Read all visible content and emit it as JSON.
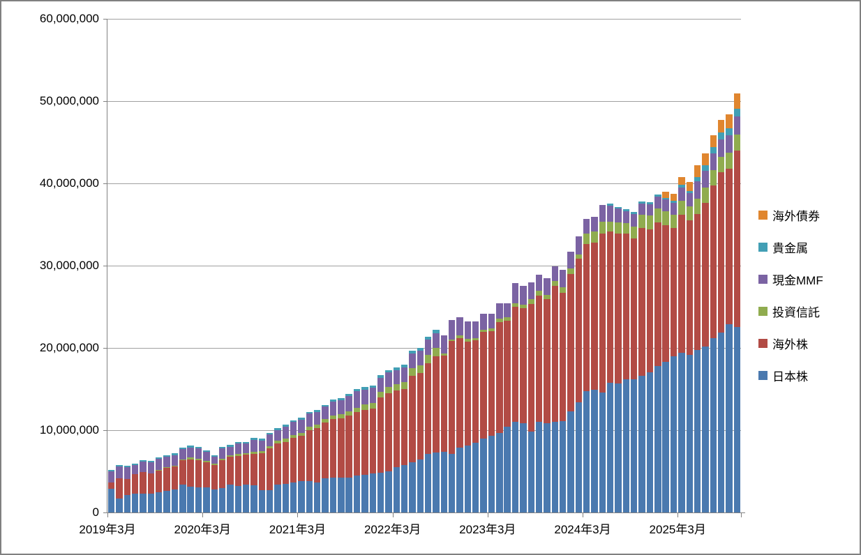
{
  "chart": {
    "y_axis": {
      "tick_labels": [
        "0",
        "10,000,000",
        "20,000,000",
        "30,000,000",
        "40,000,000",
        "50,000,000",
        "60,000,000"
      ],
      "tick_values": [
        0,
        10000000,
        20000000,
        30000000,
        40000000,
        50000000,
        60000000
      ]
    },
    "x_axis": {
      "tick_labels": [
        "2019年3月",
        "2020年3月",
        "2021年3月",
        "2022年3月",
        "2023年3月",
        "2024年3月",
        "2025年3月"
      ]
    },
    "legend": {
      "items": [
        {
          "key": "kaigai-saiken",
          "label": "海外債券",
          "color": "#E0862F"
        },
        {
          "key": "kikinzoku",
          "label": "貴金属",
          "color": "#429FB5"
        },
        {
          "key": "genkin-mmf",
          "label": "現金MMF",
          "color": "#7B63A3"
        },
        {
          "key": "toushi-shintaku",
          "label": "投資信託",
          "color": "#90AC4F"
        },
        {
          "key": "kaigai-kabu",
          "label": "海外株",
          "color": "#B24B45"
        },
        {
          "key": "nihon-kabu",
          "label": "日本株",
          "color": "#4A79AF"
        }
      ]
    },
    "colors": {
      "gridline": "#a0a0a0",
      "axis": "#808080",
      "background": "#ffffff"
    }
  },
  "chart_data": {
    "type": "bar",
    "stacked": true,
    "grid": true,
    "legend_position": "right",
    "ylim": [
      0,
      60000000
    ],
    "unit_multiplier": 10000,
    "x_tick_interval": 12,
    "x_tick_labels": [
      "2019年3月",
      "2020年3月",
      "2021年3月",
      "2022年3月",
      "2023年3月",
      "2024年3月",
      "2025年3月"
    ],
    "categories": [
      "2019年3月",
      "2019年4月",
      "2019年5月",
      "2019年6月",
      "2019年7月",
      "2019年8月",
      "2019年9月",
      "2019年10月",
      "2019年11月",
      "2019年12月",
      "2020年1月",
      "2020年2月",
      "2020年3月",
      "2020年4月",
      "2020年5月",
      "2020年6月",
      "2020年7月",
      "2020年8月",
      "2020年9月",
      "2020年10月",
      "2020年11月",
      "2020年12月",
      "2021年1月",
      "2021年2月",
      "2021年3月",
      "2021年4月",
      "2021年5月",
      "2021年6月",
      "2021年7月",
      "2021年8月",
      "2021年9月",
      "2021年10月",
      "2021年11月",
      "2021年12月",
      "2022年1月",
      "2022年2月",
      "2022年3月",
      "2022年4月",
      "2022年5月",
      "2022年6月",
      "2022年7月",
      "2022年8月",
      "2022年9月",
      "2022年10月",
      "2022年11月",
      "2022年12月",
      "2023年1月",
      "2023年2月",
      "2023年3月",
      "2023年4月",
      "2023年5月",
      "2023年6月",
      "2023年7月",
      "2023年8月",
      "2023年9月",
      "2023年10月",
      "2023年11月",
      "2023年12月",
      "2024年1月",
      "2024年2月",
      "2024年3月",
      "2024年4月",
      "2024年5月",
      "2024年6月",
      "2024年7月",
      "2024年8月",
      "2024年9月",
      "2024年10月",
      "2024年11月",
      "2024年12月",
      "2025年1月",
      "2025年2月",
      "2025年3月",
      "2025年4月",
      "2025年5月",
      "2025年6月",
      "2025年7月",
      "2025年8月",
      "2025年9月",
      "2025年10月"
    ],
    "series": [
      {
        "name": "日本株",
        "color": "#4A79AF",
        "values": [
          288,
          172,
          209,
          231,
          229,
          226,
          243,
          260,
          279,
          336,
          313,
          308,
          306,
          282,
          294,
          336,
          325,
          339,
          328,
          271,
          274,
          339,
          347,
          364,
          378,
          384,
          364,
          418,
          423,
          425,
          427,
          446,
          458,
          472,
          483,
          497,
          553,
          576,
          610,
          647,
          709,
          726,
          737,
          709,
          788,
          816,
          850,
          895,
          929,
          963,
          1042,
          1099,
          1084,
          986,
          1099,
          1085,
          1100,
          1107,
          1226,
          1339,
          1472,
          1494,
          1461,
          1573,
          1565,
          1621,
          1621,
          1664,
          1706,
          1777,
          1828,
          1896,
          1941,
          1918,
          1974,
          2017,
          2116,
          2186,
          2285,
          2251
        ]
      },
      {
        "name": "海外株",
        "color": "#B24B45",
        "values": [
          76,
          240,
          195,
          232,
          262,
          248,
          268,
          288,
          277,
          297,
          334,
          325,
          307,
          292,
          344,
          342,
          364,
          361,
          386,
          449,
          508,
          500,
          512,
          543,
          551,
          616,
          659,
          675,
          710,
          722,
          751,
          772,
          788,
          788,
          912,
          949,
          927,
          924,
          1054,
          1051,
          1104,
          1172,
          1172,
          1373,
          1333,
          1262,
          1243,
          1297,
          1271,
          1350,
          1288,
          1403,
          1398,
          1545,
          1539,
          1511,
          1651,
          1565,
          1672,
          1743,
          1788,
          1785,
          1926,
          1842,
          1827,
          1766,
          1709,
          1793,
          1737,
          1745,
          1666,
          1561,
          1678,
          1632,
          1652,
          1743,
          1858,
          1949,
          1893,
          2146
        ]
      },
      {
        "name": "投資信託",
        "color": "#90AC4F",
        "values": [
          0,
          0,
          0,
          0,
          0,
          0,
          5,
          5,
          12,
          14,
          20,
          19,
          17,
          16,
          17,
          19,
          20,
          23,
          23,
          23,
          23,
          34,
          36,
          36,
          40,
          42,
          42,
          45,
          45,
          48,
          51,
          50,
          70,
          73,
          71,
          77,
          79,
          85,
          87,
          93,
          99,
          105,
          23,
          19,
          29,
          29,
          28,
          28,
          37,
          40,
          40,
          42,
          43,
          65,
          57,
          51,
          63,
          65,
          65,
          51,
          127,
          136,
          146,
          118,
          130,
          126,
          141,
          162,
          165,
          175,
          167,
          162,
          169,
          170,
          184,
          192,
          189,
          190,
          197,
          198
        ]
      },
      {
        "name": "現金MMF",
        "color": "#7B63A3",
        "values": [
          133,
          144,
          146,
          110,
          125,
          133,
          136,
          121,
          129,
          121,
          124,
          127,
          104,
          91,
          122,
          103,
          127,
          113,
          147,
          133,
          141,
          130,
          150,
          156,
          161,
          158,
          158,
          147,
          172,
          167,
          189,
          204,
          178,
          181,
          172,
          177,
          172,
          180,
          184,
          178,
          188,
          177,
          218,
          235,
          225,
          212,
          198,
          192,
          175,
          186,
          169,
          241,
          226,
          198,
          198,
          198,
          178,
          212,
          204,
          220,
          178,
          175,
          207,
          198,
          175,
          150,
          156,
          135,
          138,
          142,
          141,
          146,
          164,
          162,
          212,
          203,
          199,
          212,
          213,
          217
        ]
      },
      {
        "name": "貴金属",
        "color": "#429FB5",
        "values": [
          17,
          20,
          17,
          20,
          19,
          17,
          17,
          20,
          20,
          20,
          19,
          20,
          17,
          16,
          17,
          19,
          20,
          20,
          20,
          20,
          20,
          20,
          20,
          19,
          22,
          23,
          22,
          23,
          23,
          25,
          25,
          28,
          29,
          28,
          29,
          29,
          31,
          34,
          34,
          34,
          35,
          40,
          0,
          0,
          0,
          0,
          0,
          0,
          0,
          0,
          0,
          0,
          0,
          0,
          0,
          0,
          0,
          0,
          0,
          0,
          0,
          0,
          0,
          20,
          15,
          23,
          23,
          23,
          23,
          23,
          23,
          23,
          28,
          28,
          56,
          65,
          76,
          79,
          84,
          94
        ]
      },
      {
        "name": "海外債券",
        "color": "#E0862F",
        "values": [
          0,
          0,
          0,
          0,
          0,
          0,
          0,
          0,
          0,
          0,
          0,
          0,
          0,
          0,
          0,
          0,
          0,
          0,
          0,
          0,
          0,
          0,
          0,
          0,
          0,
          0,
          0,
          0,
          0,
          0,
          0,
          0,
          0,
          0,
          0,
          0,
          0,
          0,
          0,
          0,
          0,
          0,
          0,
          0,
          0,
          0,
          0,
          0,
          0,
          0,
          0,
          0,
          0,
          0,
          0,
          0,
          0,
          0,
          0,
          0,
          0,
          0,
          0,
          0,
          0,
          0,
          0,
          0,
          0,
          0,
          76,
          85,
          99,
          104,
          142,
          142,
          150,
          155,
          170,
          189
        ]
      }
    ]
  }
}
